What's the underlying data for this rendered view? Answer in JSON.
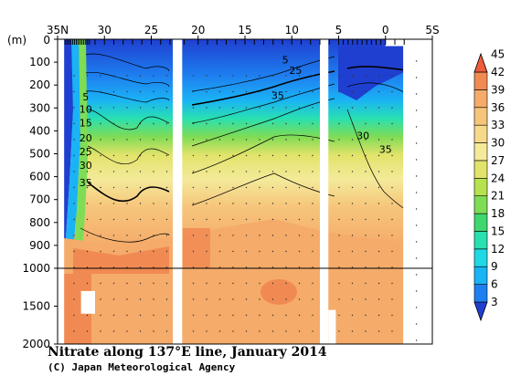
{
  "chart_data": {
    "type": "heatmap",
    "title": "Nitrate along 137°E line, January 2014",
    "credit": "(C) Japan Meteorological Agency",
    "ylabel": "(m)",
    "x_ticks": [
      "35N",
      "30",
      "25",
      "20",
      "15",
      "10",
      "5",
      "0",
      "5S"
    ],
    "x_tick_values": [
      35,
      30,
      25,
      20,
      15,
      10,
      5,
      0,
      -5
    ],
    "y_ticks": [
      "0",
      "100",
      "200",
      "300",
      "400",
      "500",
      "600",
      "700",
      "800",
      "900",
      "1000",
      "1500",
      "2000"
    ],
    "y_tick_values": [
      0,
      100,
      200,
      300,
      400,
      500,
      600,
      700,
      800,
      900,
      1000,
      1500,
      2000
    ],
    "xlim": [
      35,
      -5
    ],
    "ylim": [
      2000,
      0
    ],
    "y_scale_break": 1000,
    "colorbar_levels": [
      "3",
      "6",
      "9",
      "12",
      "15",
      "18",
      "21",
      "24",
      "27",
      "30",
      "33",
      "36",
      "39",
      "42",
      "45"
    ],
    "colorbar_colors": [
      "#1f3fd0",
      "#1e7ff0",
      "#1ab3f5",
      "#1fd8e6",
      "#29e0b0",
      "#3fd86e",
      "#7fdc55",
      "#b6e24f",
      "#e2e36a",
      "#f4ea9a",
      "#f7d98a",
      "#f6c57b",
      "#f5ab6a",
      "#f18a52",
      "#ee5c3a"
    ],
    "contour_labels": [
      {
        "text": "5",
        "lat": 32.0,
        "depth": 250
      },
      {
        "text": "10",
        "lat": 32.0,
        "depth": 305
      },
      {
        "text": "15",
        "lat": 32.0,
        "depth": 365
      },
      {
        "text": "20",
        "lat": 32.0,
        "depth": 430
      },
      {
        "text": "25",
        "lat": 32.0,
        "depth": 490
      },
      {
        "text": "30",
        "lat": 32.0,
        "depth": 550
      },
      {
        "text": "35",
        "lat": 32.0,
        "depth": 625
      },
      {
        "text": "5",
        "lat": 10.7,
        "depth": 90
      },
      {
        "text": "25",
        "lat": 9.6,
        "depth": 135
      },
      {
        "text": "35",
        "lat": 11.5,
        "depth": 245
      },
      {
        "text": "30",
        "lat": 2.4,
        "depth": 420
      },
      {
        "text": "35",
        "lat": 0.0,
        "depth": 480
      }
    ],
    "sections": [
      {
        "lat_start": 34.3,
        "lat_end": 22.7
      },
      {
        "lat_start": 21.7,
        "lat_end": 7.0
      },
      {
        "lat_start": 6.1,
        "lat_end": -1.9
      }
    ],
    "missing_regions": [
      {
        "lat_from": 22.7,
        "lat_to": 21.7,
        "depth_from": 0,
        "depth_to": 2000
      },
      {
        "lat_from": 7.0,
        "lat_to": 6.1,
        "depth_from": 0,
        "depth_to": 2000
      },
      {
        "lat_from": -1.9,
        "lat_to": -5.0,
        "depth_from": 0,
        "depth_to": 2000
      },
      {
        "lat_from": 0.0,
        "lat_to": -1.9,
        "depth_from": 0,
        "depth_to": 30
      },
      {
        "lat_from": 32.5,
        "lat_to": 31.0,
        "depth_from": 1300,
        "depth_to": 1600
      },
      {
        "lat_from": 6.1,
        "lat_to": 5.3,
        "depth_from": 1550,
        "depth_to": 2000
      },
      {
        "lat_from": 35.0,
        "lat_to": 34.3,
        "depth_from": 0,
        "depth_to": 2000
      }
    ]
  }
}
